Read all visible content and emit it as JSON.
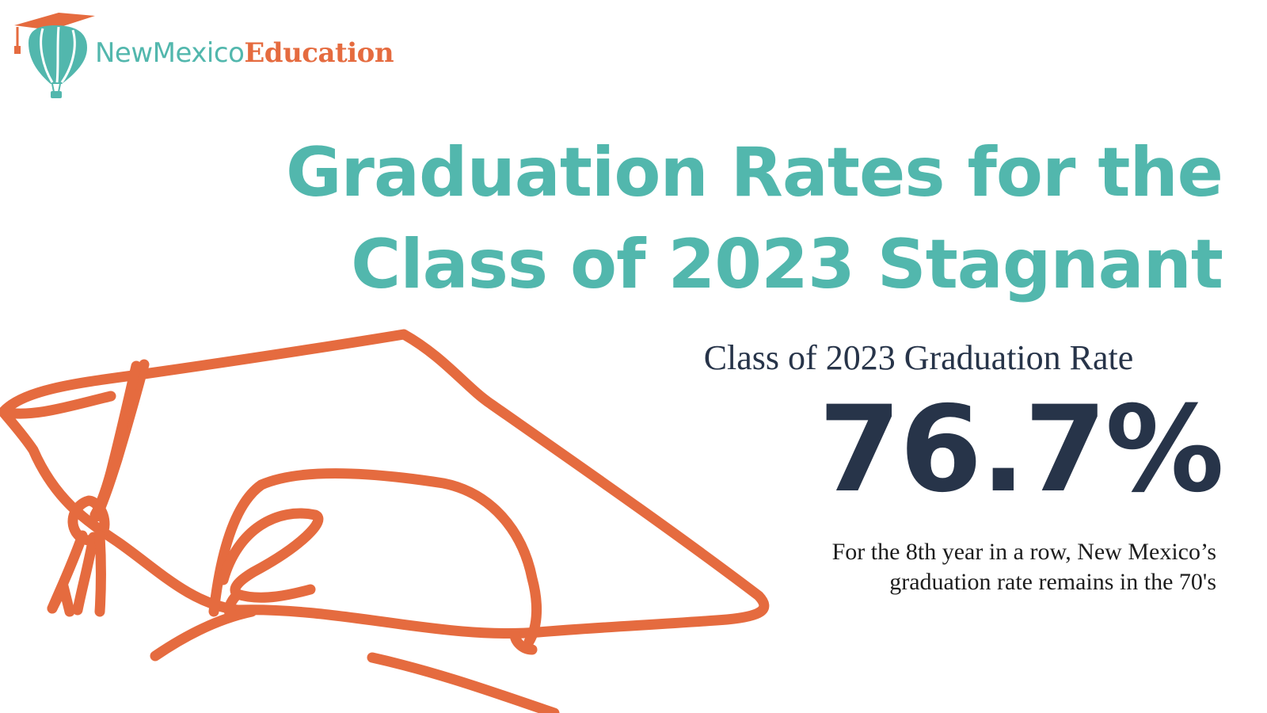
{
  "logo": {
    "text_part1": "NewMexico",
    "text_part2": "Education",
    "icon": "graduation-balloon-icon"
  },
  "headline": {
    "line1": "Graduation Rates for the",
    "line2": "Class of 2023 Stagnant"
  },
  "stat": {
    "label": "Class of 2023 Graduation Rate",
    "value": "76.7%"
  },
  "note": {
    "line1": "For the 8th year in a row, New Mexico’s",
    "line2": "graduation rate remains in the 70's"
  },
  "illustration": {
    "icon": "graduation-cap-icon"
  },
  "colors": {
    "teal": "#52b7ad",
    "orange": "#e56b3f",
    "navy": "#273449",
    "background": "#ffffff"
  }
}
